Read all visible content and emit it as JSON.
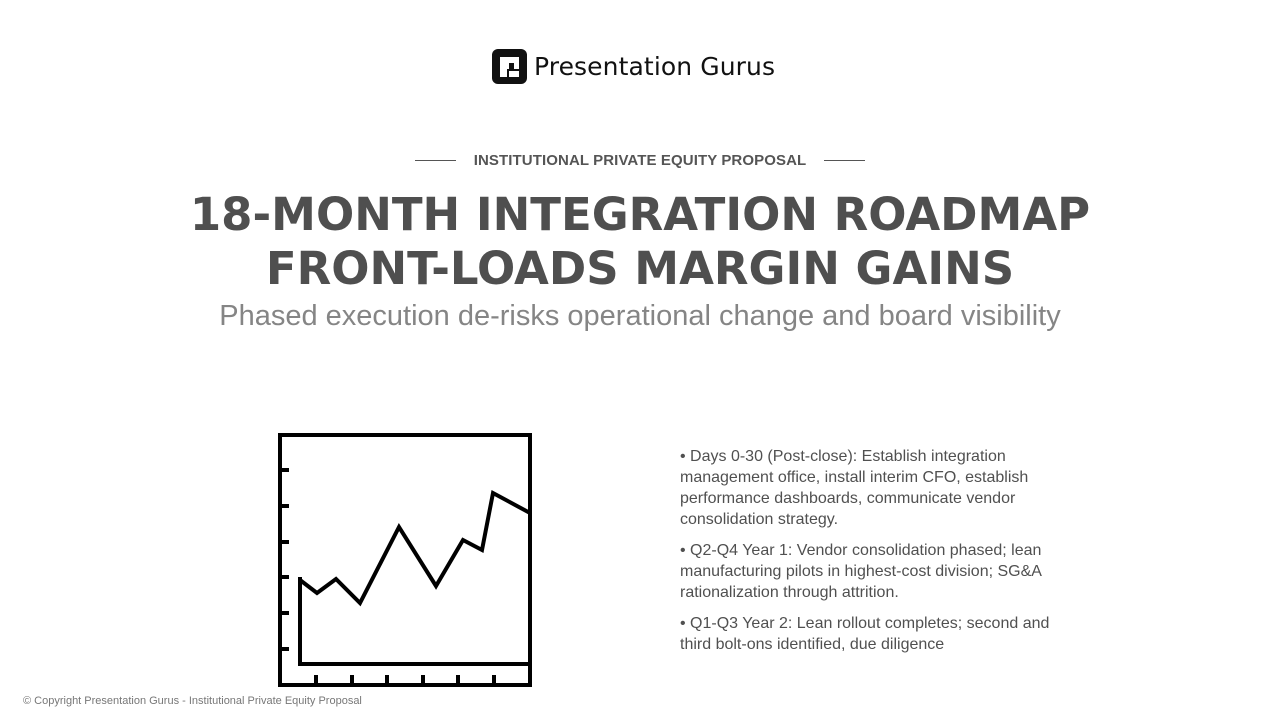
{
  "brand": {
    "logo_icon": "presentation-gurus-logo-mark",
    "name": "Presentation Gurus"
  },
  "eyebrow": "INSTITUTIONAL PRIVATE EQUITY PROPOSAL",
  "title_lines": [
    "18-MONTH INTEGRATION ROADMAP",
    "FRONT-LOADS MARGIN GAINS"
  ],
  "subtitle": "Phased execution de-risks operational change and board visibility",
  "illustration": {
    "icon": "line-chart-icon"
  },
  "bullets": [
    "• Days 0-30 (Post-close): Establish integration management office, install interim CFO, establish performance dashboards, communicate vendor consolidation strategy.",
    "• Q2-Q4 Year 1: Vendor consolidation phased; lean manufacturing pilots in highest-cost division; SG&A rationalization through attrition.",
    "• Q1-Q3 Year 2: Lean rollout completes; second and third bolt-ons identified, due diligence"
  ],
  "footer": "© Copyright Presentation Gurus - Institutional Private Equity Proposal",
  "colors": {
    "title": "#4f4f4f",
    "subtitle": "#858585",
    "body_text": "#505050",
    "logo": "#111111"
  }
}
